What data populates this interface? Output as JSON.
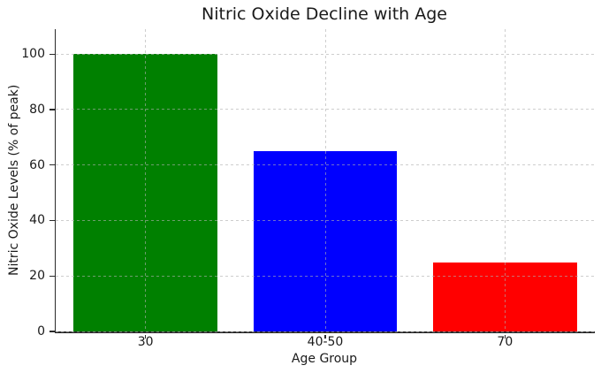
{
  "chart_data": {
    "type": "bar",
    "title": "Nitric Oxide Decline with Age",
    "xlabel": "Age Group",
    "ylabel": "Nitric Oxide Levels (% of peak)",
    "categories": [
      "30",
      "40-50",
      "70"
    ],
    "values": [
      100,
      65,
      25
    ],
    "bar_colors": [
      "#008000",
      "#0000ff",
      "#ff0000"
    ],
    "yticks": [
      0,
      20,
      40,
      60,
      80,
      100
    ],
    "ylim": [
      0,
      109
    ],
    "grid": "dashed, light gray, drawn over bars (horizontal at yticks, vertical at category centers)",
    "legend": "none",
    "spines": [
      "left",
      "bottom"
    ],
    "background_color": "#ffffff",
    "bar_width_fraction": 0.8
  }
}
